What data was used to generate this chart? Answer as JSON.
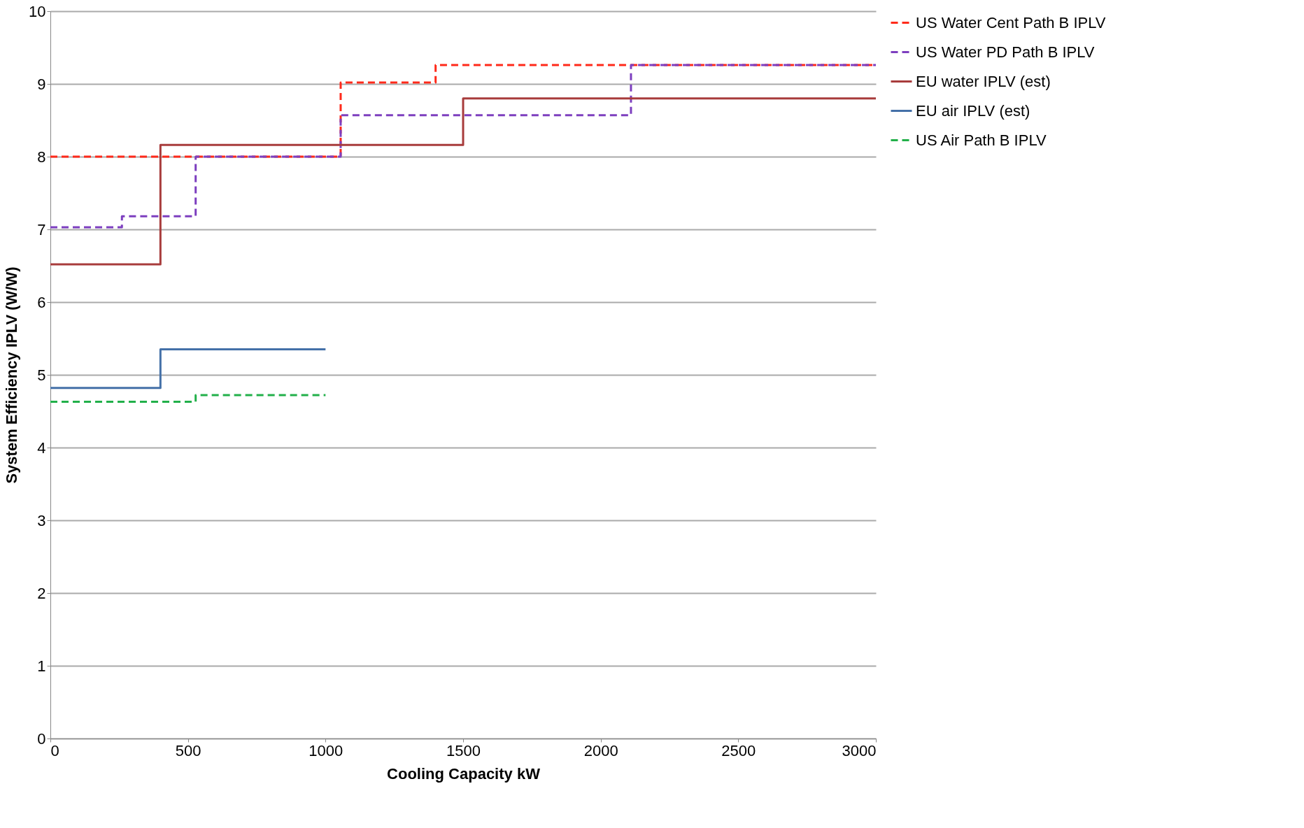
{
  "chart_data": {
    "type": "step",
    "xlabel": "Cooling Capacity kW",
    "ylabel": "System Efficiency IPLV (W/W)",
    "xlim": [
      0,
      3000
    ],
    "xticks": [
      0,
      500,
      1000,
      1500,
      2000,
      2500,
      3000
    ],
    "ylim": [
      0,
      10
    ],
    "yticks": [
      0,
      1,
      2,
      3,
      4,
      5,
      6,
      7,
      8,
      9,
      10
    ],
    "grid": "y",
    "legend": "right",
    "marker": "none",
    "series": [
      {
        "name": "US Water Cent Path B IPLV",
        "color": "#ff2a1a",
        "line_style": "dashed",
        "x": [
          0,
          1055,
          1400,
          3000
        ],
        "values": [
          8.0,
          9.02,
          9.26,
          9.26
        ]
      },
      {
        "name": "US Water PD Path B IPLV",
        "color": "#7d3fbf",
        "line_style": "dashed",
        "x": [
          0,
          260,
          528,
          1055,
          2110,
          3000
        ],
        "values": [
          7.03,
          7.18,
          8.0,
          8.57,
          9.26,
          9.26
        ]
      },
      {
        "name": "EU water IPLV (est)",
        "color": "#a83c3c",
        "line_style": "solid",
        "x": [
          0,
          400,
          1500,
          3000
        ],
        "values": [
          6.52,
          8.16,
          8.8,
          8.8
        ]
      },
      {
        "name": "EU air IPLV (est)",
        "color": "#4470a8",
        "line_style": "solid",
        "x": [
          0,
          400,
          1000
        ],
        "values": [
          4.82,
          5.35,
          5.35
        ]
      },
      {
        "name": "US Air Path B IPLV",
        "color": "#22b04a",
        "line_style": "dashed",
        "x": [
          0,
          528,
          1000
        ],
        "values": [
          4.63,
          4.72,
          4.72
        ]
      }
    ]
  }
}
